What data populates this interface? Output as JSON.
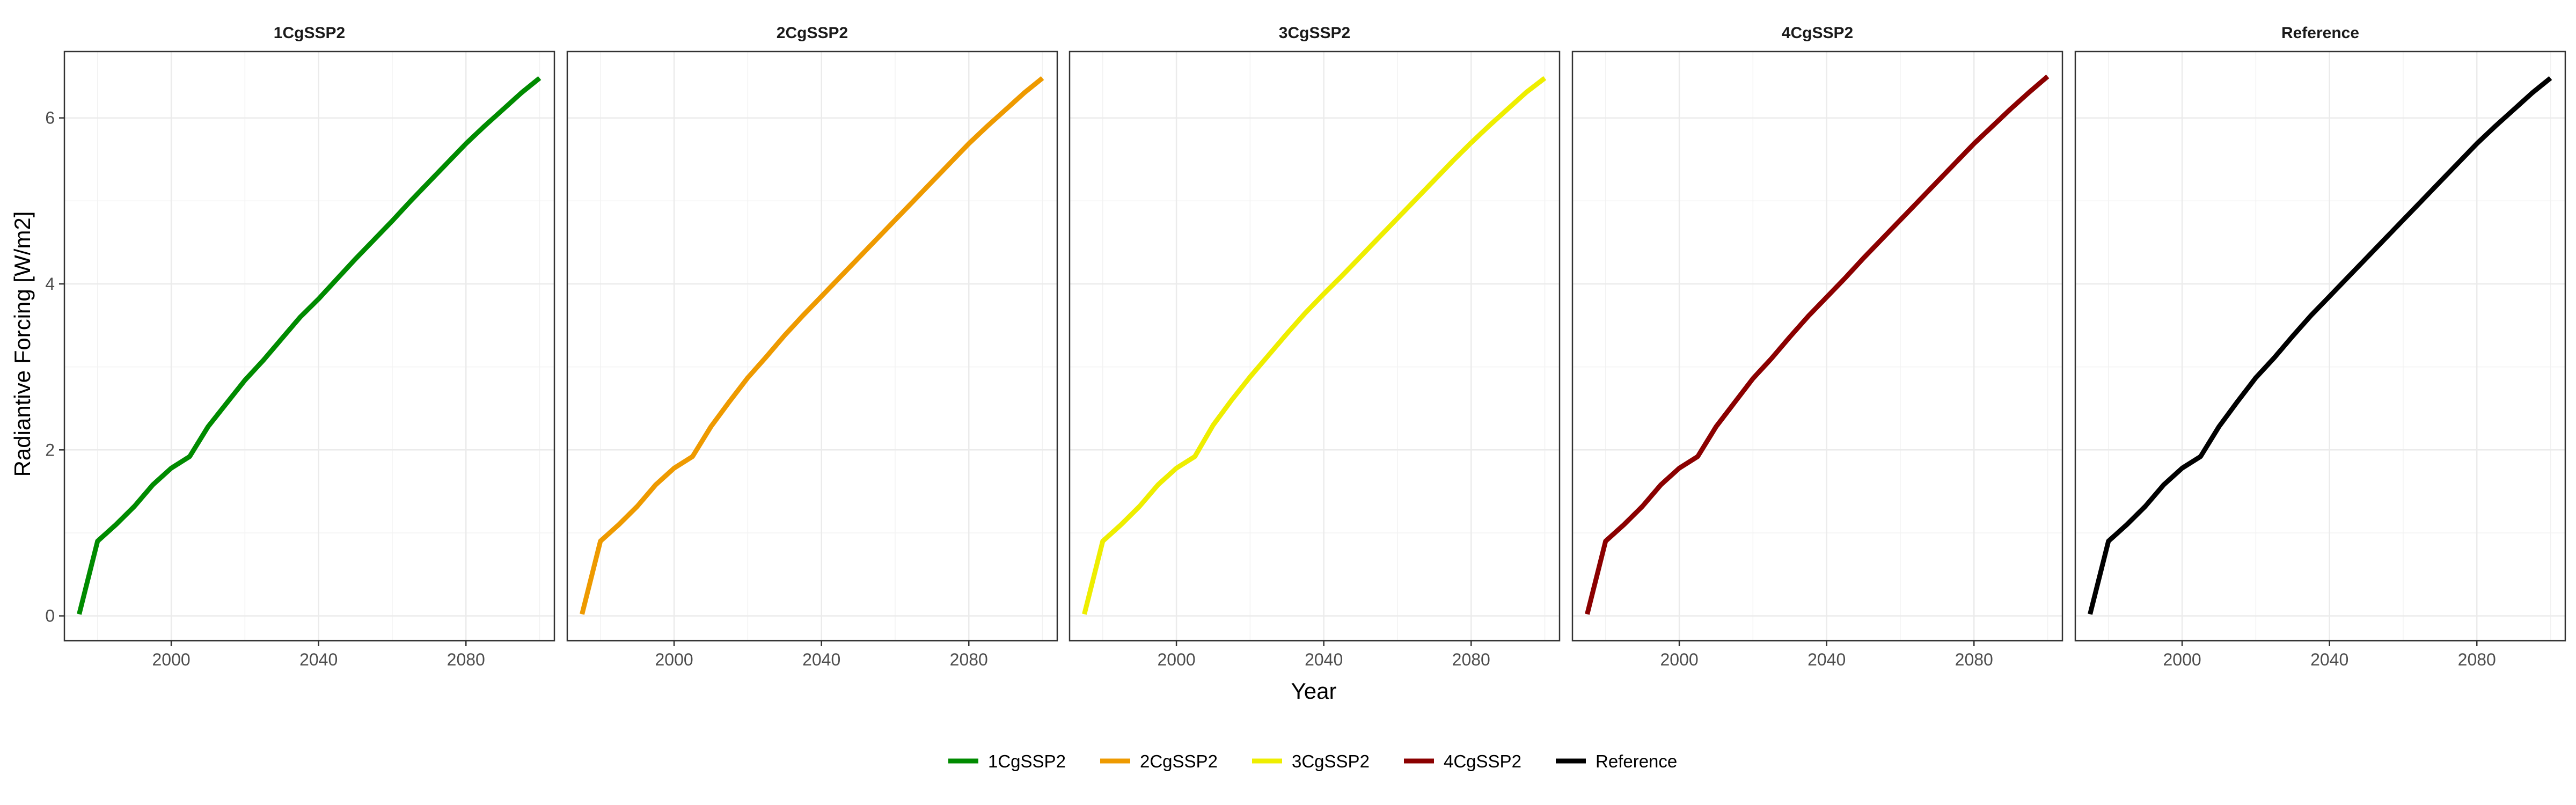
{
  "chart_data": {
    "type": "line",
    "layout": "facets",
    "xlabel": "Year",
    "ylabel": "Radiantive Forcing [W/m2]",
    "xlim": [
      1971,
      2104
    ],
    "ylim": [
      -0.3,
      6.8
    ],
    "xticks": [
      2000,
      2040,
      2080
    ],
    "yticks": [
      0,
      2,
      4,
      6
    ],
    "grid": true,
    "legend_position": "bottom",
    "x": [
      1975,
      1980,
      1985,
      1990,
      1995,
      2000,
      2005,
      2010,
      2015,
      2020,
      2025,
      2030,
      2035,
      2040,
      2045,
      2050,
      2055,
      2060,
      2065,
      2070,
      2075,
      2080,
      2085,
      2090,
      2095,
      2100
    ],
    "series": [
      {
        "name": "1CgSSP2",
        "color": "#008b00",
        "values": [
          0.02,
          0.9,
          1.1,
          1.32,
          1.58,
          1.78,
          1.92,
          2.28,
          2.56,
          2.84,
          3.08,
          3.34,
          3.6,
          3.82,
          4.06,
          4.3,
          4.53,
          4.76,
          5.0,
          5.23,
          5.46,
          5.69,
          5.9,
          6.1,
          6.3,
          6.48
        ]
      },
      {
        "name": "2CgSSP2",
        "color": "#ee9a00",
        "values": [
          0.02,
          0.9,
          1.1,
          1.32,
          1.58,
          1.78,
          1.92,
          2.28,
          2.58,
          2.87,
          3.12,
          3.38,
          3.62,
          3.85,
          4.08,
          4.31,
          4.54,
          4.77,
          5.0,
          5.23,
          5.46,
          5.69,
          5.9,
          6.1,
          6.3,
          6.48
        ]
      },
      {
        "name": "3CgSSP2",
        "color": "#eeee00",
        "values": [
          0.02,
          0.9,
          1.1,
          1.32,
          1.58,
          1.78,
          1.92,
          2.3,
          2.6,
          2.88,
          3.14,
          3.4,
          3.65,
          3.88,
          4.1,
          4.33,
          4.56,
          4.79,
          5.02,
          5.25,
          5.48,
          5.7,
          5.91,
          6.11,
          6.31,
          6.48
        ]
      },
      {
        "name": "4CgSSP2",
        "color": "#8b0000",
        "values": [
          0.02,
          0.9,
          1.1,
          1.32,
          1.58,
          1.78,
          1.92,
          2.28,
          2.57,
          2.86,
          3.1,
          3.36,
          3.61,
          3.84,
          4.07,
          4.31,
          4.54,
          4.77,
          5.0,
          5.23,
          5.46,
          5.69,
          5.9,
          6.11,
          6.31,
          6.5
        ]
      },
      {
        "name": "Reference",
        "color": "#000000",
        "values": [
          0.02,
          0.9,
          1.1,
          1.32,
          1.58,
          1.78,
          1.92,
          2.28,
          2.58,
          2.87,
          3.11,
          3.37,
          3.62,
          3.85,
          4.08,
          4.31,
          4.54,
          4.77,
          5.0,
          5.23,
          5.46,
          5.69,
          5.9,
          6.1,
          6.3,
          6.48
        ]
      }
    ]
  }
}
